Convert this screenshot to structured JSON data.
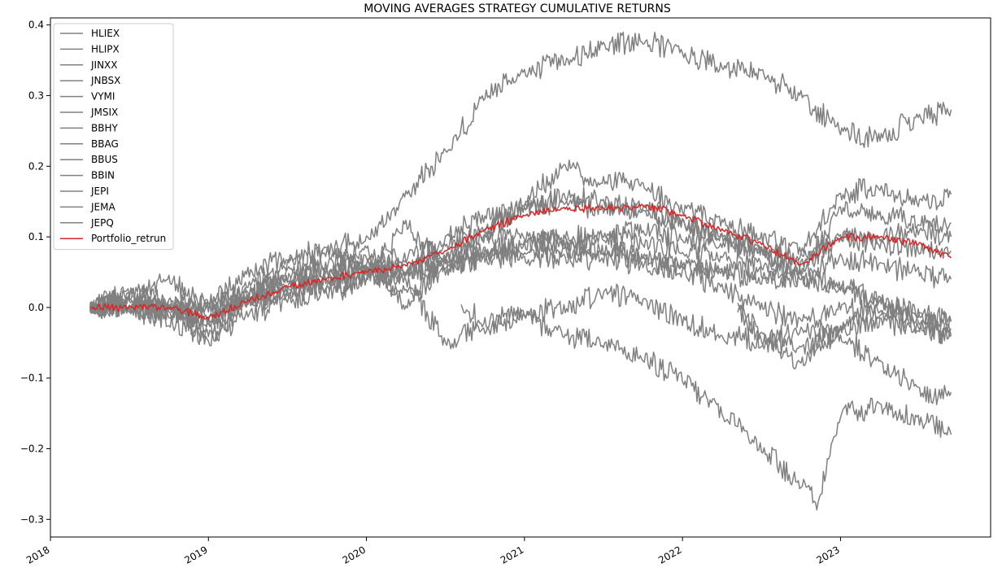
{
  "chart_data": {
    "type": "line",
    "title": "MOVING AVERAGES STRATEGY CUMULATIVE RETURNS",
    "xlabel": "",
    "ylabel": "",
    "xlim": [
      2018.0,
      2023.95
    ],
    "ylim": [
      -0.325,
      0.41
    ],
    "x_ticks": [
      "2018",
      "2019",
      "2020",
      "2021",
      "2022",
      "2023"
    ],
    "y_ticks": [
      "0.4",
      "0.3",
      "0.2",
      "0.1",
      "0.0",
      "−0.1",
      "−0.2",
      "−0.3"
    ],
    "grid": false,
    "legend_position": "top-left",
    "colors": {
      "gray": "#808080",
      "red": "#d62728"
    },
    "series": [
      {
        "name": "HLIEX",
        "color": "#808080",
        "x": [
          2018.25,
          2018.5,
          2018.75,
          2019.0,
          2019.25,
          2019.5,
          2019.75,
          2020.0,
          2020.25,
          2020.5,
          2020.75,
          2021.0,
          2021.25,
          2021.5,
          2021.75,
          2022.0,
          2022.25,
          2022.5,
          2022.75,
          2023.0,
          2023.25,
          2023.5,
          2023.7
        ],
        "values": [
          0.0,
          0.01,
          0.0,
          -0.02,
          0.03,
          0.06,
          0.08,
          0.1,
          0.16,
          0.22,
          0.3,
          0.33,
          0.35,
          0.37,
          0.38,
          0.36,
          0.34,
          0.33,
          0.3,
          0.25,
          0.24,
          0.27,
          0.28
        ]
      },
      {
        "name": "HLIPX",
        "color": "#808080",
        "x": [
          2018.25,
          2018.5,
          2018.75,
          2019.0,
          2019.25,
          2019.5,
          2019.75,
          2020.0,
          2020.25,
          2020.5,
          2020.75,
          2021.0,
          2021.25,
          2021.5,
          2021.75,
          2022.0,
          2022.25,
          2022.5,
          2022.75,
          2023.0,
          2023.25,
          2023.5,
          2023.7
        ],
        "values": [
          0.0,
          0.02,
          0.04,
          0.0,
          0.05,
          0.07,
          0.08,
          0.05,
          0.04,
          -0.05,
          -0.03,
          -0.01,
          0.0,
          0.02,
          0.01,
          -0.02,
          -0.04,
          -0.05,
          -0.03,
          -0.04,
          -0.08,
          -0.12,
          -0.12
        ]
      },
      {
        "name": "JINXX",
        "color": "#808080",
        "x": [
          2018.25,
          2018.5,
          2018.75,
          2019.0,
          2019.25,
          2019.5,
          2019.75,
          2020.0,
          2020.25,
          2020.5,
          2020.75,
          2021.0,
          2021.25,
          2021.5,
          2021.75,
          2022.0,
          2022.25,
          2022.5,
          2022.75,
          2023.0,
          2023.25,
          2023.5,
          2023.7
        ],
        "values": [
          0.0,
          0.0,
          0.0,
          0.01,
          0.02,
          0.03,
          0.04,
          0.05,
          0.05,
          0.06,
          0.07,
          0.08,
          0.08,
          0.08,
          0.07,
          0.06,
          0.05,
          0.05,
          0.04,
          0.03,
          0.01,
          -0.01,
          -0.02
        ]
      },
      {
        "name": "JNBSX",
        "color": "#808080",
        "x": [
          2018.25,
          2018.5,
          2018.75,
          2019.0,
          2019.25,
          2019.5,
          2019.75,
          2020.0,
          2020.25,
          2020.5,
          2020.75,
          2021.0,
          2021.25,
          2021.5,
          2021.75,
          2022.0,
          2022.25,
          2022.5,
          2022.75,
          2023.0,
          2023.25,
          2023.5,
          2023.7
        ],
        "values": [
          0.0,
          0.01,
          0.0,
          -0.01,
          0.01,
          0.03,
          0.04,
          0.06,
          0.02,
          0.05,
          0.08,
          0.09,
          0.1,
          0.1,
          0.09,
          0.08,
          0.07,
          0.06,
          0.05,
          0.07,
          0.06,
          0.05,
          0.04
        ]
      },
      {
        "name": "VYMI",
        "color": "#808080",
        "x": [
          2018.25,
          2018.5,
          2018.75,
          2019.0,
          2019.25,
          2019.5,
          2019.75,
          2020.0,
          2020.25,
          2020.5,
          2020.75,
          2021.0,
          2021.25,
          2021.5,
          2021.75,
          2022.0,
          2022.25,
          2022.5,
          2022.75,
          2023.0,
          2023.25,
          2023.5,
          2023.7
        ],
        "values": [
          0.0,
          0.0,
          -0.02,
          -0.04,
          -0.01,
          0.01,
          0.02,
          0.04,
          0.12,
          0.06,
          0.1,
          0.15,
          0.2,
          0.18,
          0.17,
          0.14,
          0.12,
          0.1,
          0.08,
          0.16,
          0.17,
          0.15,
          0.16
        ]
      },
      {
        "name": "JMSIX",
        "color": "#808080",
        "x": [
          2018.25,
          2018.5,
          2018.75,
          2019.0,
          2019.25,
          2019.5,
          2019.75,
          2020.0,
          2020.25,
          2020.5,
          2020.75,
          2021.0,
          2021.25,
          2021.5,
          2021.75,
          2022.0,
          2022.25,
          2022.5,
          2022.75,
          2023.0,
          2023.25,
          2023.5,
          2023.7
        ],
        "values": [
          0.0,
          0.0,
          0.0,
          0.0,
          0.01,
          0.02,
          0.03,
          0.04,
          0.05,
          0.06,
          0.07,
          0.07,
          0.07,
          0.07,
          0.06,
          0.06,
          0.05,
          0.04,
          0.04,
          0.03,
          0.01,
          -0.02,
          -0.03
        ]
      },
      {
        "name": "BBHY",
        "color": "#808080",
        "x": [
          2018.25,
          2018.5,
          2018.75,
          2019.0,
          2019.25,
          2019.5,
          2019.75,
          2020.0,
          2020.25,
          2020.5,
          2020.75,
          2021.0,
          2021.25,
          2021.5,
          2021.75,
          2022.0,
          2022.25,
          2022.5,
          2022.75,
          2023.0,
          2023.25,
          2023.5,
          2023.7
        ],
        "values": [
          0.0,
          0.01,
          0.0,
          -0.05,
          0.01,
          0.04,
          0.05,
          0.07,
          0.0,
          0.07,
          0.11,
          0.14,
          0.16,
          0.15,
          0.14,
          0.12,
          0.1,
          0.08,
          0.05,
          0.14,
          0.13,
          0.12,
          0.12
        ]
      },
      {
        "name": "BBAG",
        "color": "#808080",
        "x": [
          2018.25,
          2018.5,
          2018.75,
          2019.0,
          2019.25,
          2019.5,
          2019.75,
          2020.0,
          2020.25,
          2020.5,
          2020.75,
          2021.0,
          2021.25,
          2021.5,
          2021.75,
          2022.0,
          2022.25,
          2022.5,
          2022.75,
          2023.0,
          2023.25,
          2023.5,
          2023.7
        ],
        "values": [
          0.0,
          0.0,
          -0.01,
          0.0,
          0.02,
          0.04,
          0.05,
          0.06,
          0.07,
          0.09,
          0.1,
          0.1,
          0.09,
          0.08,
          0.07,
          0.05,
          0.03,
          0.0,
          -0.02,
          0.0,
          -0.01,
          -0.03,
          -0.04
        ]
      },
      {
        "name": "BBUS",
        "color": "#808080",
        "x": [
          2018.25,
          2018.5,
          2018.75,
          2019.0,
          2019.25,
          2019.5,
          2019.75,
          2020.0,
          2020.25,
          2020.5,
          2020.75,
          2021.0,
          2021.25,
          2021.5,
          2021.75,
          2022.0,
          2022.25,
          2022.5,
          2022.75,
          2023.0,
          2023.25,
          2023.5,
          2023.7
        ],
        "values": [
          0.0,
          0.02,
          0.01,
          -0.03,
          0.02,
          0.05,
          0.06,
          0.08,
          0.05,
          0.1,
          0.13,
          0.14,
          0.15,
          0.14,
          0.14,
          0.12,
          0.1,
          0.08,
          0.06,
          0.1,
          0.1,
          0.11,
          0.1
        ]
      },
      {
        "name": "BBIN",
        "color": "#808080",
        "x": [
          2018.25,
          2018.5,
          2018.75,
          2019.0,
          2019.25,
          2019.5,
          2019.75,
          2020.0,
          2020.25,
          2020.5,
          2020.75,
          2021.0,
          2021.25,
          2021.5,
          2021.75,
          2022.0,
          2022.25,
          2022.5,
          2022.75,
          2023.0,
          2023.25,
          2023.5,
          2023.7
        ],
        "values": [
          0.0,
          0.0,
          -0.01,
          -0.02,
          0.01,
          0.02,
          0.03,
          0.05,
          0.06,
          0.07,
          0.08,
          0.09,
          0.09,
          0.1,
          0.11,
          0.1,
          0.09,
          0.08,
          0.07,
          0.1,
          0.09,
          0.08,
          0.08
        ]
      },
      {
        "name": "JEPI",
        "color": "#808080",
        "x": [
          2020.6,
          2020.75,
          2021.0,
          2021.25,
          2021.5,
          2021.75,
          2022.0,
          2022.25,
          2022.5,
          2022.75,
          2022.85,
          2023.0,
          2023.25,
          2023.5,
          2023.7
        ],
        "values": [
          0.0,
          -0.02,
          -0.01,
          -0.04,
          -0.05,
          -0.07,
          -0.1,
          -0.15,
          -0.2,
          -0.25,
          -0.28,
          -0.15,
          -0.14,
          -0.16,
          -0.18
        ]
      },
      {
        "name": "JEMA",
        "color": "#808080",
        "x": [
          2022.35,
          2022.5,
          2022.75,
          2023.0,
          2023.25,
          2023.5,
          2023.7
        ],
        "values": [
          0.0,
          -0.04,
          -0.06,
          -0.03,
          -0.02,
          -0.03,
          -0.04
        ]
      },
      {
        "name": "JEPQ",
        "color": "#808080",
        "x": [
          2022.35,
          2022.5,
          2022.75,
          2023.0,
          2023.25,
          2023.5,
          2023.7
        ],
        "values": [
          0.0,
          -0.05,
          -0.08,
          -0.03,
          0.0,
          -0.01,
          -0.02
        ]
      },
      {
        "name": "Portfolio_retrun",
        "color": "#d62728",
        "x": [
          2018.25,
          2018.5,
          2018.75,
          2019.0,
          2019.25,
          2019.5,
          2019.75,
          2020.0,
          2020.25,
          2020.5,
          2020.75,
          2021.0,
          2021.25,
          2021.5,
          2021.75,
          2022.0,
          2022.25,
          2022.5,
          2022.75,
          2023.0,
          2023.25,
          2023.5,
          2023.7
        ],
        "values": [
          0.0,
          0.0,
          0.0,
          -0.015,
          0.01,
          0.03,
          0.04,
          0.05,
          0.06,
          0.08,
          0.11,
          0.13,
          0.14,
          0.14,
          0.145,
          0.13,
          0.11,
          0.09,
          0.06,
          0.1,
          0.1,
          0.09,
          0.07
        ]
      }
    ]
  }
}
